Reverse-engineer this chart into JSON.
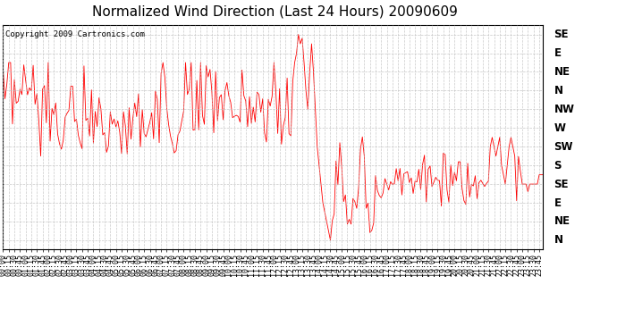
{
  "title": "Normalized Wind Direction (Last 24 Hours) 20090609",
  "copyright_text": "Copyright 2009 Cartronics.com",
  "line_color": "#ff0000",
  "background_color": "#ffffff",
  "plot_bg_color": "#ffffff",
  "grid_color": "#bbbbbb",
  "ytick_labels": [
    "SE",
    "E",
    "NE",
    "N",
    "NW",
    "W",
    "SW",
    "S",
    "SE",
    "E",
    "NE",
    "N"
  ],
  "ytick_values": [
    11,
    10,
    9,
    8,
    7,
    6,
    5,
    4,
    3,
    2,
    1,
    0
  ],
  "ymin": -0.5,
  "ymax": 11.5,
  "title_fontsize": 11,
  "copyright_fontsize": 6.5,
  "tick_label_fontsize": 6
}
